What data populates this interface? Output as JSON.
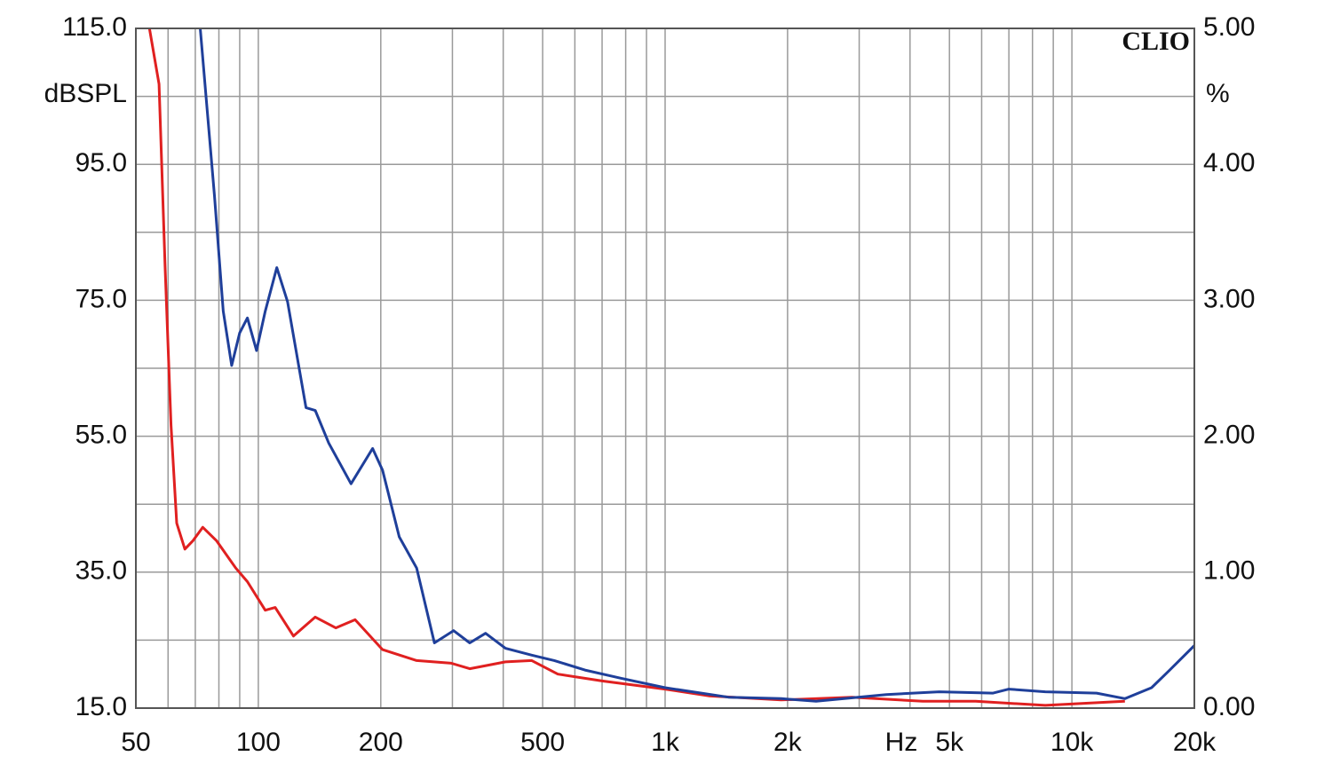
{
  "chart_data": {
    "type": "line",
    "brand": "CLIO",
    "y_label": "dBSPL",
    "y2_label": "%",
    "x_label": "Hz",
    "xscale": "log",
    "xlim": [
      50,
      20000
    ],
    "xticks": [
      50,
      100,
      200,
      500,
      {
        "value": 1000,
        "label": "1k"
      },
      {
        "value": 2000,
        "label": "2k"
      },
      {
        "value": 5000,
        "label": "5k"
      },
      {
        "value": 10000,
        "label": "10k"
      },
      {
        "value": 20000,
        "label": "20k"
      }
    ],
    "xgrid_minor": [
      60,
      70,
      80,
      90,
      300,
      400,
      600,
      700,
      800,
      900,
      3000,
      4000,
      6000,
      7000,
      8000,
      9000
    ],
    "ylim": [
      15,
      115
    ],
    "yticks": [
      {
        "value": 15,
        "label": "15.0"
      },
      {
        "value": 35,
        "label": "35.0"
      },
      {
        "value": 55,
        "label": "55.0"
      },
      {
        "value": 75,
        "label": "75.0"
      },
      {
        "value": 95,
        "label": "95.0"
      },
      {
        "value": 115,
        "label": "115.0"
      }
    ],
    "ygrid_minor": [
      25,
      45,
      65,
      85,
      105
    ],
    "y2lim": [
      0,
      5
    ],
    "y2ticks": [
      {
        "value": 0,
        "label": "0.00"
      },
      {
        "value": 1,
        "label": "1.00"
      },
      {
        "value": 2,
        "label": "2.00"
      },
      {
        "value": 3,
        "label": "3.00"
      },
      {
        "value": 4,
        "label": "4.00"
      },
      {
        "value": 5,
        "label": "5.00"
      }
    ],
    "grid": true,
    "series": [
      {
        "color": "#e02020",
        "axis": "y2",
        "x": [
          54,
          57,
          59,
          61,
          63,
          66,
          69,
          73,
          79,
          88,
          94,
          104,
          110,
          122,
          138,
          155,
          173,
          202,
          245,
          298,
          331,
          405,
          470,
          545,
          700,
          1000,
          1280,
          1930,
          2880,
          4300,
          5800,
          8600,
          13500
        ],
        "values": [
          5.0,
          4.59,
          3.25,
          2.08,
          1.36,
          1.17,
          1.23,
          1.33,
          1.23,
          1.03,
          0.93,
          0.72,
          0.74,
          0.53,
          0.67,
          0.59,
          0.65,
          0.43,
          0.35,
          0.33,
          0.29,
          0.34,
          0.35,
          0.25,
          0.2,
          0.14,
          0.09,
          0.06,
          0.08,
          0.05,
          0.05,
          0.02,
          0.05
        ]
      },
      {
        "color": "#1f3f9a",
        "axis": "y2",
        "x": [
          72,
          78,
          82,
          86,
          90,
          94,
          99,
          104,
          111,
          118,
          131,
          138,
          149,
          169,
          191,
          202,
          222,
          245,
          271,
          302,
          331,
          362,
          405,
          470,
          534,
          635,
          778,
          1000,
          1430,
          1930,
          2350,
          3500,
          4720,
          6400,
          7000,
          8600,
          11500,
          13500,
          15700,
          17400,
          20000
        ],
        "values": [
          5.0,
          3.77,
          2.92,
          2.52,
          2.76,
          2.87,
          2.63,
          2.92,
          3.24,
          2.99,
          2.21,
          2.19,
          1.95,
          1.65,
          1.91,
          1.75,
          1.26,
          1.03,
          0.48,
          0.57,
          0.48,
          0.55,
          0.44,
          0.39,
          0.35,
          0.28,
          0.22,
          0.15,
          0.08,
          0.07,
          0.05,
          0.1,
          0.12,
          0.11,
          0.14,
          0.12,
          0.11,
          0.07,
          0.15,
          0.28,
          0.46
        ]
      }
    ]
  }
}
